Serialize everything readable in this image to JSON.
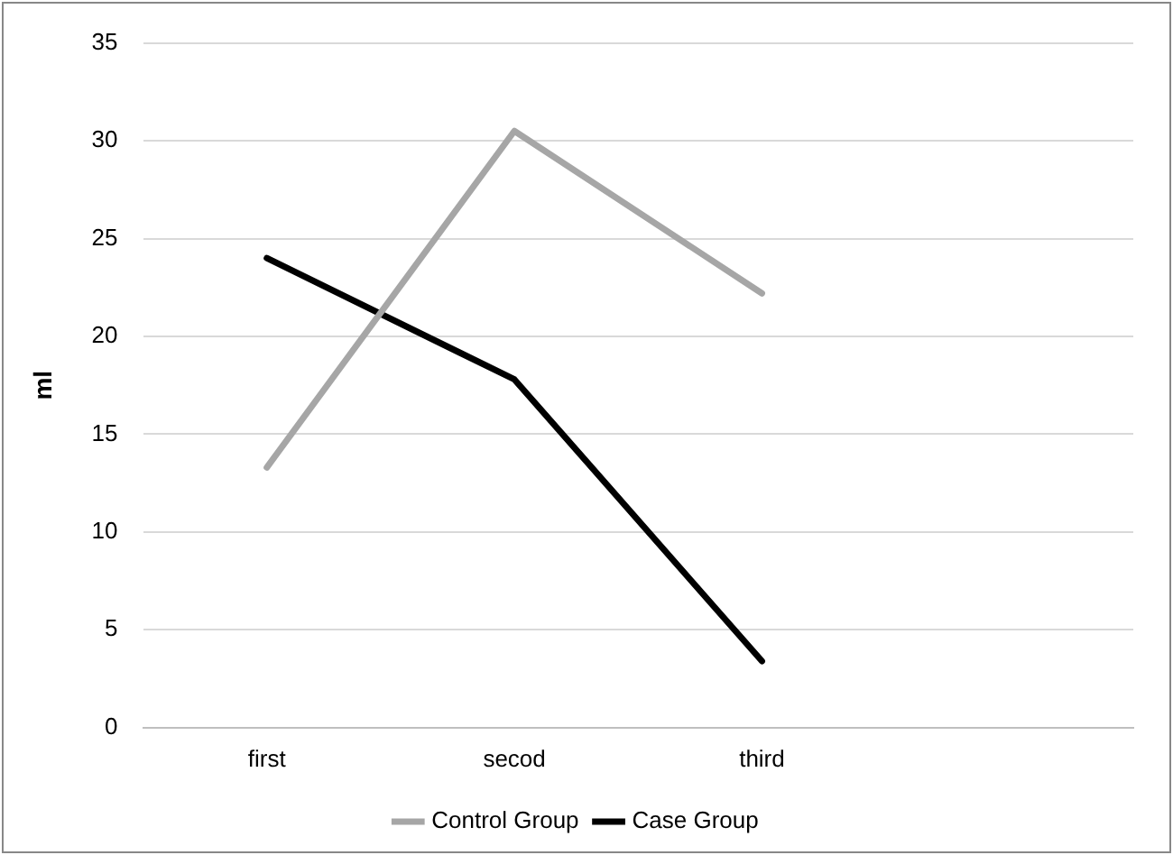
{
  "chart_data": {
    "type": "line",
    "ylabel": "ml",
    "categories": [
      "first",
      "secod",
      "third",
      null
    ],
    "series": [
      {
        "name": "Control Group",
        "color": "#a6a6a6",
        "values": [
          13.3,
          30.5,
          22.2,
          null
        ]
      },
      {
        "name": "Case Group",
        "color": "#000000",
        "values": [
          24.0,
          17.8,
          3.4,
          null
        ]
      }
    ],
    "ylim": [
      0,
      35
    ],
    "yticks": [
      0,
      5,
      10,
      15,
      20,
      25,
      30,
      35
    ],
    "grid": "y",
    "legend": "bottom",
    "marker": "none",
    "line_style": "solid"
  }
}
